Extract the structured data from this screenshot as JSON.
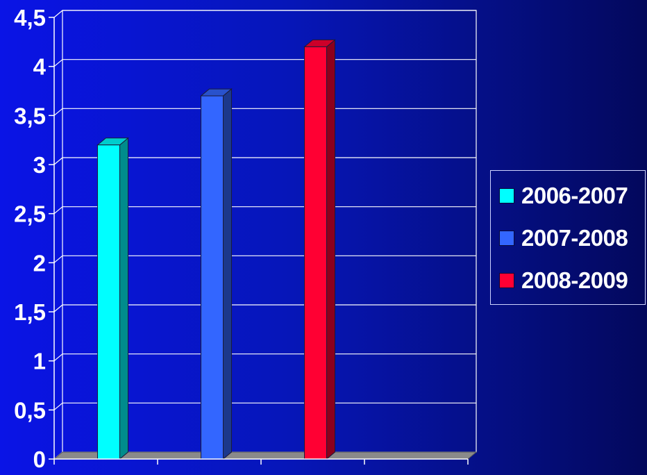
{
  "chart_data": {
    "type": "bar",
    "categories": [
      "2006-2007",
      "2007-2008",
      "2008-2009"
    ],
    "values": [
      3.2,
      3.7,
      4.2
    ],
    "colors": [
      "#00ffff",
      "#3366ff",
      "#ff0033"
    ],
    "yticks": [
      "0",
      "0,5",
      "1",
      "1,5",
      "2",
      "2,5",
      "3",
      "3,5",
      "4",
      "4,5"
    ],
    "ylim": [
      0,
      4.5
    ],
    "grid": true,
    "legend_position": "right",
    "legend": [
      "2006-2007",
      "2007-2008",
      "2008-2009"
    ]
  }
}
